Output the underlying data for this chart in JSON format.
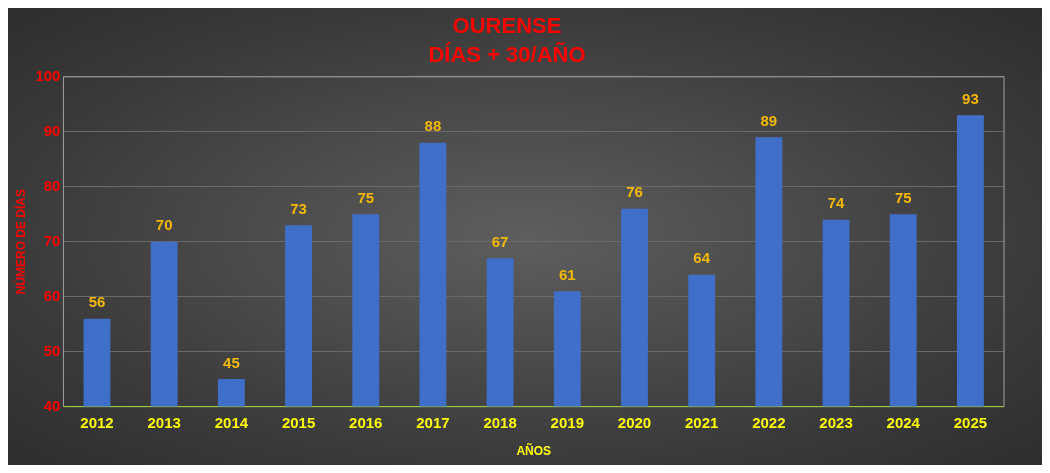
{
  "chart_data": {
    "type": "bar",
    "title": "OURENSE",
    "subtitle": "DÍAS + 30/AÑO",
    "xlabel": "AÑOS",
    "ylabel": "NÚMERO DE DÍAS",
    "categories": [
      "2012",
      "2013",
      "2014",
      "2015",
      "2016",
      "2017",
      "2018",
      "2019",
      "2020",
      "2021",
      "2022",
      "2023",
      "2024",
      "2025"
    ],
    "values": [
      56,
      70,
      45,
      73,
      75,
      88,
      67,
      61,
      76,
      64,
      89,
      74,
      75,
      93
    ],
    "color": "#3f6fc8",
    "ylim": [
      40,
      100
    ],
    "yticks": [
      40,
      50,
      60,
      70,
      80,
      90,
      100
    ],
    "grid": "y",
    "data_labels": true
  }
}
